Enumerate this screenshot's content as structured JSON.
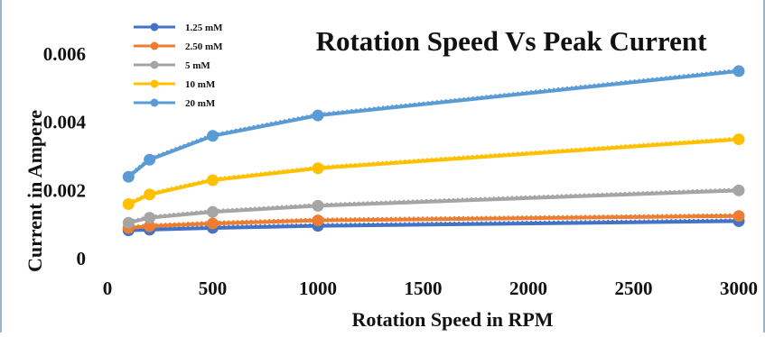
{
  "chart_data": {
    "type": "line",
    "title": "Rotation Speed Vs Peak Current",
    "xlabel": "Rotation Speed in RPM",
    "ylabel": "Current in Ampere",
    "xlim": [
      0,
      3000
    ],
    "ylim": [
      0,
      0.006
    ],
    "x_ticks": [
      "0",
      "500",
      "1000",
      "1500",
      "2000",
      "2500",
      "3000"
    ],
    "y_ticks": [
      "0",
      "0.002",
      "0.004",
      "0.006"
    ],
    "grid": false,
    "legend_position": "top-left",
    "x": [
      100,
      200,
      500,
      1000,
      3000
    ],
    "series": [
      {
        "name": "1.25 mM",
        "color": "#4472c4",
        "values": [
          0.00083,
          0.00085,
          0.0009,
          0.00096,
          0.0011
        ]
      },
      {
        "name": "2.50 mM",
        "color": "#ed7d31",
        "values": [
          0.0009,
          0.00095,
          0.00103,
          0.00112,
          0.00125
        ]
      },
      {
        "name": "5 mM",
        "color": "#a5a5a5",
        "values": [
          0.00105,
          0.0012,
          0.00137,
          0.00155,
          0.002
        ]
      },
      {
        "name": "10 mM",
        "color": "#ffc000",
        "values": [
          0.0016,
          0.00188,
          0.0023,
          0.00265,
          0.0035
        ]
      },
      {
        "name": "20 mM",
        "color": "#5b9bd5",
        "values": [
          0.0024,
          0.0029,
          0.0036,
          0.0042,
          0.0055
        ]
      }
    ]
  }
}
